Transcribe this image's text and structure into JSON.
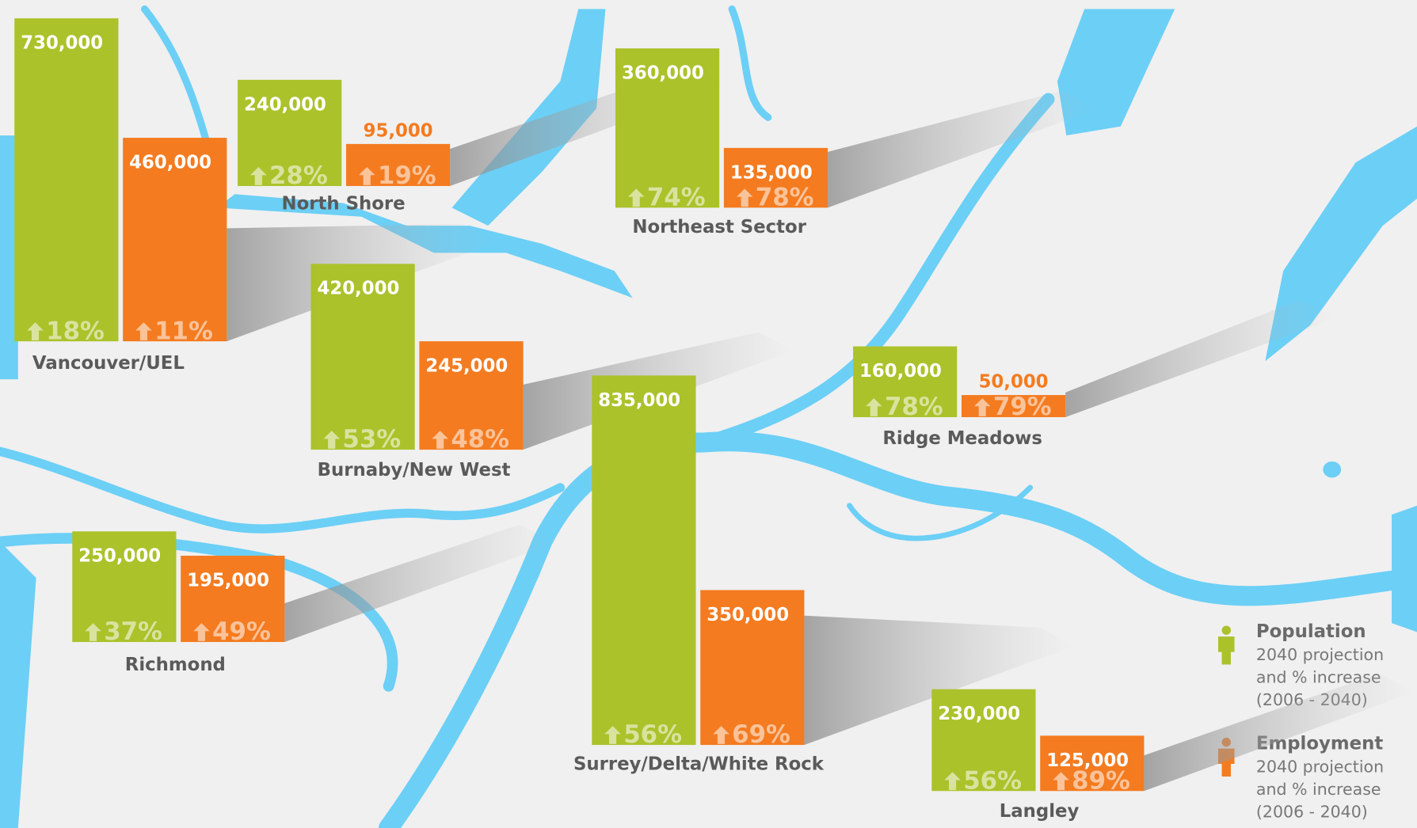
{
  "chart_data": {
    "type": "bar",
    "categories": [
      "Vancouver/UEL",
      "North Shore",
      "Northeast Sector",
      "Burnaby/New West",
      "Ridge Meadows",
      "Richmond",
      "Surrey/Delta/White Rock",
      "Langley"
    ],
    "series": [
      {
        "name": "Population",
        "color": "#abc22a",
        "description": [
          "2040 projection",
          "and % increase",
          "(2006 - 2040)"
        ],
        "values": [
          730000,
          240000,
          360000,
          420000,
          160000,
          250000,
          835000,
          230000
        ],
        "value_labels": [
          "730,000",
          "240,000",
          "360,000",
          "420,000",
          "160,000",
          "250,000",
          "835,000",
          "230,000"
        ],
        "increase": [
          18,
          28,
          74,
          53,
          78,
          37,
          56,
          56
        ],
        "increase_labels": [
          "18%",
          "28%",
          "74%",
          "53%",
          "78%",
          "37%",
          "56%",
          "56%"
        ]
      },
      {
        "name": "Employment",
        "color": "#f47b20",
        "description": [
          "2040 projection",
          "and % increase",
          "(2006 - 2040)"
        ],
        "values": [
          460000,
          95000,
          135000,
          245000,
          50000,
          195000,
          350000,
          125000
        ],
        "value_labels": [
          "460,000",
          "95,000",
          "135,000",
          "245,000",
          "50,000",
          "195,000",
          "350,000",
          "125,000"
        ],
        "increase": [
          11,
          19,
          78,
          48,
          79,
          49,
          69,
          89
        ],
        "increase_labels": [
          "11%",
          "19%",
          "78%",
          "48%",
          "79%",
          "49%",
          "69%",
          "89%"
        ]
      }
    ]
  }
}
